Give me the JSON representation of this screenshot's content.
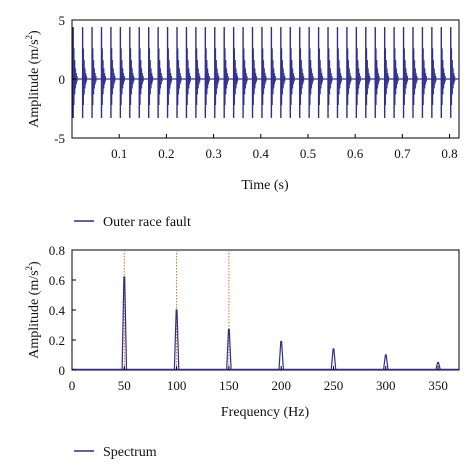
{
  "colors": {
    "signal": "#2e2e8c",
    "marker": "#e06a2a",
    "axis": "#000000"
  },
  "chart_data": [
    {
      "type": "line",
      "title": "",
      "xlabel": "Time (s)",
      "ylabel": "Amplitude (m/s",
      "ylabel_sup": "2",
      "ylabel_close": ")",
      "xlim": [
        0,
        0.82
      ],
      "ylim": [
        -5,
        5
      ],
      "xticks": [
        0.1,
        0.2,
        0.3,
        0.4,
        0.5,
        0.6,
        0.7,
        0.8
      ],
      "xtick_labels": [
        "0.1",
        "0.2",
        "0.3",
        "0.4",
        "0.5",
        "0.6",
        "0.7",
        "0.8"
      ],
      "yticks": [
        -5,
        0,
        5
      ],
      "ytick_labels": [
        "-5",
        "0",
        "5"
      ],
      "grid": false,
      "legend_position": "below",
      "series": [
        {
          "name": "Outer race fault",
          "impulse_period_s": 0.02,
          "impulse_first_s": 0.0025,
          "peak_positive": 4.4,
          "peak_negative": -3.3
        }
      ]
    },
    {
      "type": "line",
      "title": "",
      "xlabel": "Frequency (Hz)",
      "ylabel": "Amplitude (m/s",
      "ylabel_sup": "2",
      "ylabel_close": ")",
      "xlim": [
        0,
        370
      ],
      "ylim": [
        0,
        0.8
      ],
      "xticks": [
        0,
        50,
        100,
        150,
        200,
        250,
        300,
        350
      ],
      "xtick_labels": [
        "0",
        "50",
        "100",
        "150",
        "200",
        "250",
        "300",
        "350"
      ],
      "yticks": [
        0,
        0.2,
        0.4,
        0.6,
        0.8
      ],
      "ytick_labels": [
        "0",
        "0.2",
        "0.4",
        "0.6",
        "0.8"
      ],
      "grid": false,
      "legend_position": "below",
      "series": [
        {
          "name": "Spectrum",
          "peaks": [
            {
              "x": 50,
              "y": 0.62
            },
            {
              "x": 100,
              "y": 0.4
            },
            {
              "x": 150,
              "y": 0.27
            },
            {
              "x": 200,
              "y": 0.19
            },
            {
              "x": 250,
              "y": 0.14
            },
            {
              "x": 300,
              "y": 0.1
            },
            {
              "x": 350,
              "y": 0.05
            }
          ]
        }
      ],
      "markers": [
        50,
        100,
        150
      ]
    }
  ]
}
